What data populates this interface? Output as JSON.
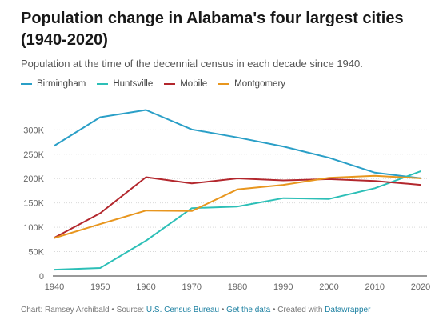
{
  "title": "Population change in Alabama's four largest cities (1940-2020)",
  "subtitle": "Population at the time of the decennial census in each decade since 1940.",
  "footer": {
    "prefix": "Chart: Ramsey Archibald • Source: ",
    "source_link": "U.S. Census Bureau",
    "sep1": " • ",
    "data_link": "Get the data",
    "sep2": " • Created with ",
    "tool_link": "Datawrapper"
  },
  "chart_data": {
    "type": "line",
    "x": [
      1940,
      1950,
      1960,
      1970,
      1980,
      1990,
      2000,
      2010,
      2020
    ],
    "xlabel": "",
    "ylabel": "",
    "ylim": [
      0,
      340000
    ],
    "yticks": [
      0,
      50000,
      100000,
      150000,
      200000,
      250000,
      300000
    ],
    "ytick_labels": [
      "0",
      "50K",
      "100K",
      "150K",
      "200K",
      "250K",
      "300K"
    ],
    "xtick_labels": [
      "1940",
      "1950",
      "1960",
      "1970",
      "1980",
      "1990",
      "2000",
      "2010",
      "2020"
    ],
    "grid": true,
    "legend_position": "top-left",
    "series": [
      {
        "name": "Birmingham",
        "color": "#2a9fc7",
        "values": [
          267583,
          326037,
          340887,
          300910,
          284413,
          265968,
          242820,
          212237,
          200733
        ]
      },
      {
        "name": "Huntsville",
        "color": "#2cbfb7",
        "values": [
          13050,
          16437,
          72365,
          139282,
          142513,
          159789,
          158216,
          180105,
          215006
        ]
      },
      {
        "name": "Mobile",
        "color": "#b3272d",
        "values": [
          78720,
          129009,
          202779,
          190026,
          200452,
          196278,
          198915,
          195111,
          187041
        ]
      },
      {
        "name": "Montgomery",
        "color": "#e8961e",
        "values": [
          78084,
          106525,
          134393,
          133386,
          177857,
          187106,
          201568,
          205764,
          200603
        ]
      }
    ]
  }
}
